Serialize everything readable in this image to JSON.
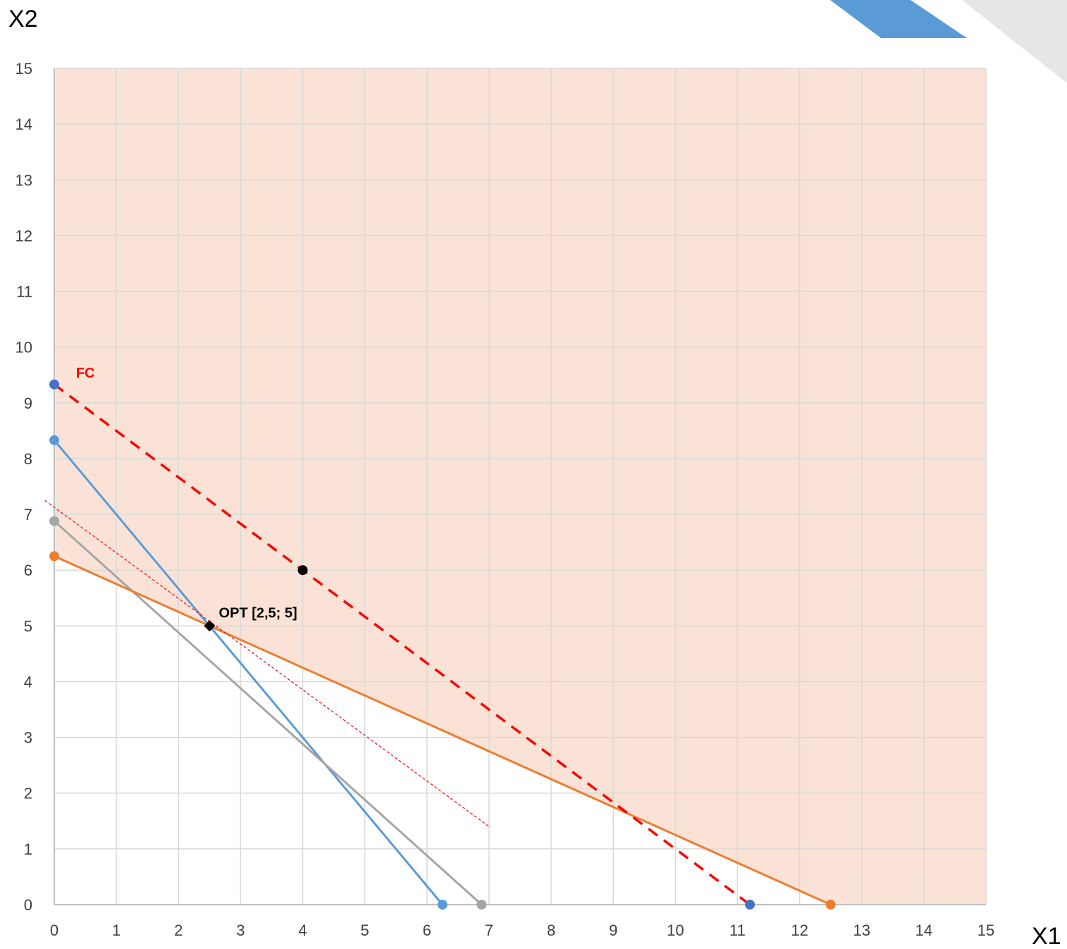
{
  "chart_data": {
    "type": "line",
    "xlabel": "X1",
    "ylabel": "X2",
    "xlim": [
      0,
      15
    ],
    "ylim": [
      0,
      15
    ],
    "xticks": [
      0,
      1,
      2,
      3,
      4,
      5,
      6,
      7,
      8,
      9,
      10,
      11,
      12,
      13,
      14,
      15
    ],
    "yticks": [
      0,
      1,
      2,
      3,
      4,
      5,
      6,
      7,
      8,
      9,
      10,
      11,
      12,
      13,
      14,
      15
    ],
    "grid": true,
    "legend": "none",
    "feasible_region": {
      "color": "#FAE3D6",
      "description_points": [
        [
          0,
          6.25
        ],
        [
          2.5,
          5
        ],
        [
          12.5,
          0
        ],
        [
          15,
          0
        ],
        [
          15,
          15
        ],
        [
          0,
          15
        ]
      ]
    },
    "series": [
      {
        "points": [
          [
            0,
            8.33
          ],
          [
            6.25,
            0
          ]
        ],
        "color": "#5B9BD5",
        "style": "solid",
        "markers": true
      },
      {
        "points": [
          [
            0,
            6.88
          ],
          [
            6.88,
            0
          ]
        ],
        "color": "#A5A5A5",
        "style": "solid",
        "markers": true
      },
      {
        "points": [
          [
            0,
            6.25
          ],
          [
            12.5,
            0
          ]
        ],
        "color": "#ED7D31",
        "style": "solid",
        "markers": true
      },
      {
        "points": [
          [
            0,
            9.33
          ],
          [
            11.2,
            0
          ]
        ],
        "color": "#FF0000",
        "style": "dashed",
        "markers": true,
        "marker_color": "#4472C4"
      },
      {
        "points": [
          [
            -0.15,
            7.25
          ],
          [
            7.0,
            1.4
          ]
        ],
        "color": "#FF0000",
        "style": "dotted-thin",
        "markers": false
      }
    ],
    "highlight_points": [
      {
        "x": 4,
        "y": 6,
        "color": "#000000",
        "shape": "circle"
      },
      {
        "x": 2.5,
        "y": 5,
        "color": "#000000",
        "shape": "diamond"
      }
    ],
    "annotations": [
      {
        "text": "FC",
        "x": 0.35,
        "y": 9.45,
        "color": "#FF0000"
      },
      {
        "text": "OPT [2,5; 5]",
        "x": 2.65,
        "y": 5.15,
        "color": "#000000"
      }
    ]
  },
  "decoration": {
    "corner_blue": "#5B9BD5",
    "corner_gray": "#E6E6E6"
  }
}
